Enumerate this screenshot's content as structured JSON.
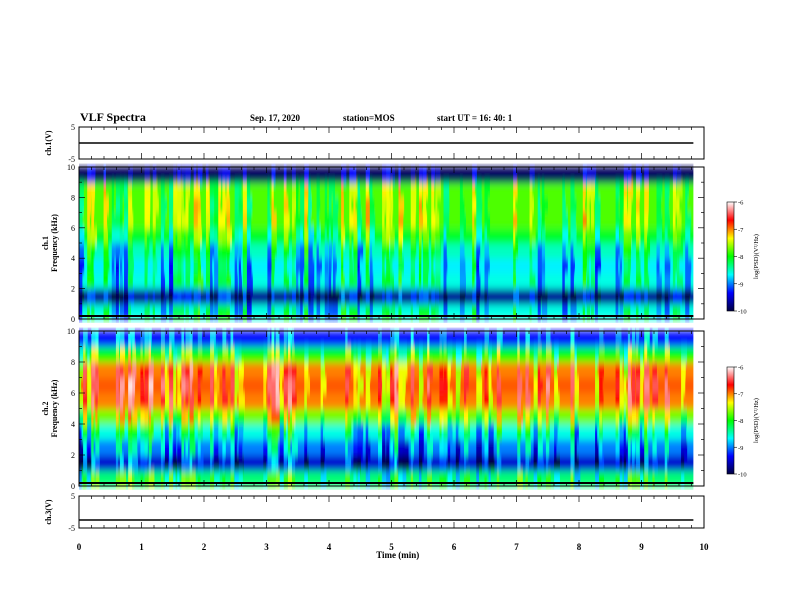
{
  "header": {
    "title": "VLF Spectra",
    "date": "Sep. 17, 2020",
    "station": "station=MOS",
    "start": "start  UT  =   16: 40: 1"
  },
  "colorbar": {
    "label": "log(PSD)(V²/Hz)",
    "ticks": [
      "-6",
      "-7",
      "-8",
      "-9",
      "-10"
    ],
    "colors": [
      "#ffffff",
      "#ff0000",
      "#ffff00",
      "#00ff00",
      "#00ffff",
      "#0000ff",
      "#000040"
    ]
  },
  "chart_data": [
    {
      "type": "line",
      "panel": "ch1-waveform",
      "ylabel": "ch.1(V)",
      "ylim": [
        -5,
        5
      ],
      "yticks": [
        "5",
        "-5"
      ],
      "x": [
        0,
        9.83
      ],
      "values": [
        0,
        0
      ]
    },
    {
      "type": "heatmap",
      "panel": "ch1-spectrogram",
      "ylabel": "ch.1\nFrequency (kHz)",
      "ylim": [
        0,
        10
      ],
      "yticks": [
        "0",
        "2",
        "4",
        "6",
        "8",
        "10"
      ],
      "zlim": [
        -10,
        -6
      ],
      "freq_bands_khz": [
        0.5,
        1.5,
        2.5,
        3.5,
        4.5,
        5.5,
        6.5,
        7.5,
        8.5,
        9.5
      ],
      "log_psd_profile": [
        -8.6,
        -9.7,
        -8.6,
        -8.7,
        -8.5,
        -8.1,
        -7.8,
        -7.8,
        -7.8,
        -9.9
      ]
    },
    {
      "type": "heatmap",
      "panel": "ch2-spectrogram",
      "ylabel": "ch.2\nFrequency (kHz)",
      "ylim": [
        0,
        10
      ],
      "yticks": [
        "0",
        "2",
        "4",
        "6",
        "8",
        "10"
      ],
      "zlim": [
        -10,
        -6
      ],
      "freq_bands_khz": [
        0.5,
        1.5,
        2.5,
        3.5,
        4.5,
        5.5,
        6.5,
        7.5,
        8.5,
        9.5
      ],
      "log_psd_profile": [
        -8.3,
        -9.5,
        -9.0,
        -8.6,
        -7.7,
        -7.0,
        -6.9,
        -7.0,
        -8.0,
        -9.3
      ]
    },
    {
      "type": "line",
      "panel": "ch3-waveform",
      "ylabel": "ch.3(V)",
      "ylim": [
        -5,
        5
      ],
      "yticks": [
        "5",
        "-5"
      ],
      "x": [
        0,
        9.83
      ],
      "values": [
        -2.5,
        -2.5
      ]
    }
  ],
  "xaxis": {
    "label": "Time  (min)",
    "xlim": [
      0,
      10
    ],
    "ticks": [
      "0",
      "1",
      "2",
      "3",
      "4",
      "5",
      "6",
      "7",
      "8",
      "9",
      "10"
    ]
  }
}
